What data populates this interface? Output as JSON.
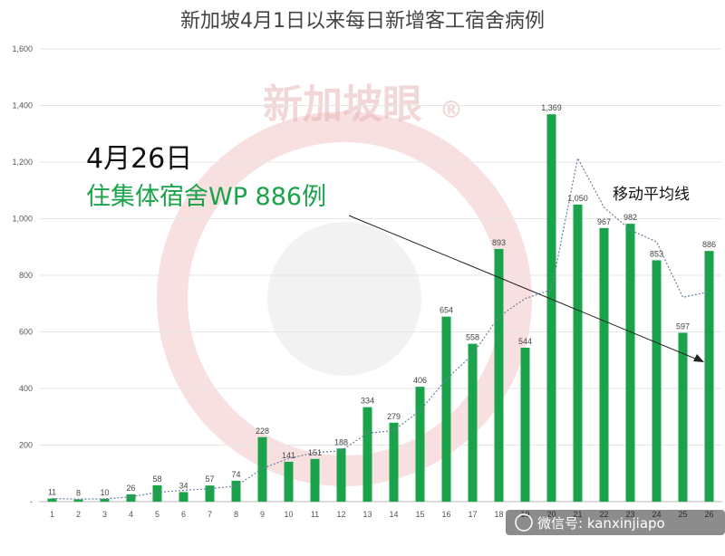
{
  "chart_data": {
    "type": "bar",
    "title": "新加坡4月1日以来每日新增客工宿舍病例",
    "categories": [
      "1",
      "2",
      "3",
      "4",
      "5",
      "6",
      "7",
      "8",
      "9",
      "10",
      "11",
      "12",
      "13",
      "14",
      "15",
      "16",
      "17",
      "18",
      "19",
      "20",
      "21",
      "22",
      "23",
      "24",
      "25",
      "26"
    ],
    "values": [
      11,
      8,
      10,
      26,
      58,
      34,
      57,
      74,
      228,
      141,
      151,
      188,
      334,
      279,
      406,
      654,
      558,
      893,
      544,
      1369,
      1050,
      967,
      982,
      853,
      597,
      886
    ],
    "data_labels": [
      "11",
      "8",
      "10",
      "26",
      "58",
      "34",
      "57",
      "74",
      "228",
      "141",
      "151",
      "188",
      "334",
      "279",
      "406",
      "654",
      "558",
      "893",
      "544",
      "1,369",
      "1,050",
      "967",
      "982",
      "853",
      "597",
      "886"
    ],
    "moving_average": [
      11,
      9,
      10,
      17,
      33,
      40,
      46,
      55,
      117,
      153,
      173,
      180,
      242,
      251,
      322,
      432,
      521,
      654,
      718,
      749,
      1214,
      1040,
      960,
      918,
      722,
      742
    ],
    "moving_average_label": "移动平均线",
    "yticks": [
      "-",
      "200",
      "400",
      "600",
      "800",
      "1,000",
      "1,200",
      "1,400",
      "1,600"
    ],
    "ylim": [
      0,
      1600
    ],
    "grid": true,
    "bar_color": "#1aa34a",
    "line_color": "#6a7fa0",
    "annotation": {
      "date": "4月26日",
      "text": "住集体宿舍WP 886例"
    }
  },
  "watermark": {
    "text": "新加坡眼",
    "symbol": "®",
    "color": "#e24a4a"
  },
  "wechat_overlay": {
    "text": "微信号: kanxinjiapo"
  }
}
